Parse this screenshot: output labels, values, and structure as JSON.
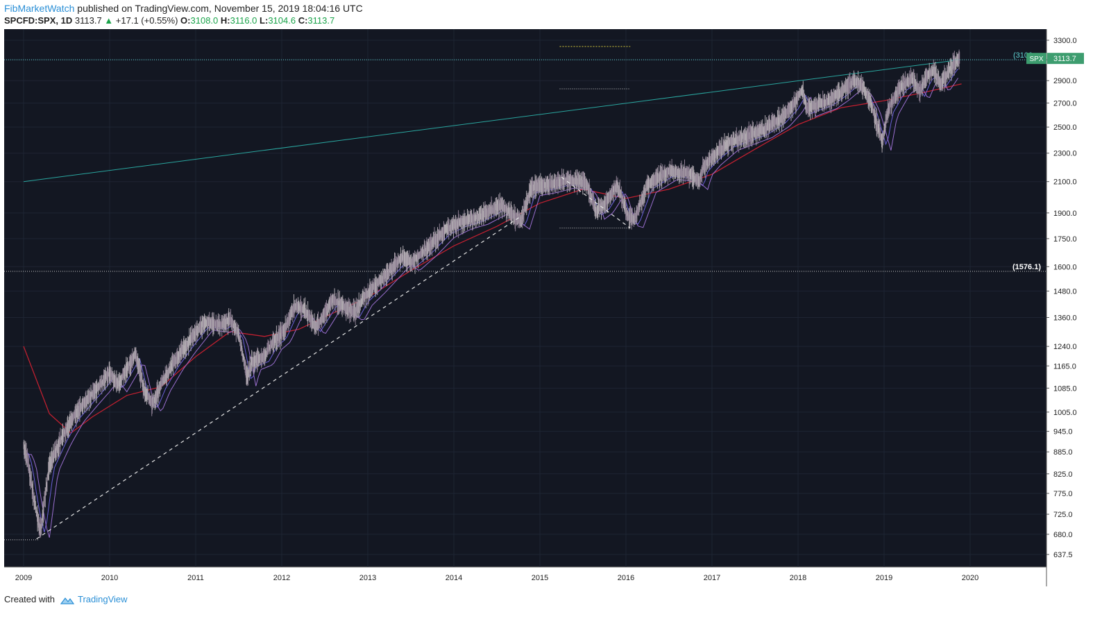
{
  "header": {
    "author": "FibMarketWatch",
    "published": "published on TradingView.com, November 15, 2019 18:04:16 UTC",
    "symbol": "SPCFD:SPX, 1D",
    "last": "3113.7",
    "change": "+17.1 (+0.55%)",
    "open_label": "O:",
    "open": "3108.0",
    "high_label": "H:",
    "high": "3116.0",
    "low_label": "L:",
    "low": "3104.6",
    "close_label": "C:",
    "close": "3113.7"
  },
  "footer": {
    "created_with": "Created with",
    "brand": "TradingView"
  },
  "colors": {
    "background": "#131722",
    "grid": "#1e2433",
    "candle": "#b0aab0",
    "ma_long": "#c02030",
    "ma_fast": "#6a5fd8",
    "ma_fast2": "#9a6fd0",
    "trendline": "#2aa7a0",
    "badge": "#3d9d6f",
    "dotted_white": "#cccccc",
    "dotted_yellow": "#d6c93a"
  },
  "chart_data": {
    "type": "line",
    "scale": "log",
    "y_ticks": [
      "3300.0",
      "3100.0",
      "2900.0",
      "2700.0",
      "2500.0",
      "2300.0",
      "2100.0",
      "1900.0",
      "1750.0",
      "1600.0",
      "1480.0",
      "1360.0",
      "1240.0",
      "1165.0",
      "1085.0",
      "1005.0",
      "945.0",
      "885.0",
      "825.0",
      "775.0",
      "725.0",
      "680.0",
      "637.5"
    ],
    "x_ticks": [
      "2009",
      "2010",
      "2011",
      "2012",
      "2013",
      "2014",
      "2015",
      "2016",
      "2017",
      "2018",
      "2019",
      "2020"
    ],
    "series": [
      {
        "role": "price",
        "x": [
          2009.0,
          2009.05,
          2009.12,
          2009.18,
          2009.2,
          2009.3,
          2009.45,
          2009.6,
          2009.75,
          2009.9,
          2010.0,
          2010.1,
          2010.3,
          2010.4,
          2010.5,
          2010.6,
          2010.75,
          2010.9,
          2011.1,
          2011.3,
          2011.4,
          2011.5,
          2011.6,
          2011.65,
          2011.8,
          2011.9,
          2012.0,
          2012.15,
          2012.25,
          2012.4,
          2012.6,
          2012.85,
          2012.95,
          2013.1,
          2013.4,
          2013.5,
          2013.7,
          2013.9,
          2014.1,
          2014.3,
          2014.55,
          2014.7,
          2014.78,
          2014.9,
          2015.1,
          2015.3,
          2015.45,
          2015.55,
          2015.65,
          2015.75,
          2015.9,
          2016.03,
          2016.1,
          2016.25,
          2016.5,
          2016.75,
          2016.85,
          2016.9,
          2017.0,
          2017.2,
          2017.4,
          2017.6,
          2017.8,
          2017.95,
          2018.05,
          2018.1,
          2018.2,
          2018.35,
          2018.5,
          2018.65,
          2018.75,
          2018.85,
          2018.95,
          2018.98,
          2019.05,
          2019.2,
          2019.33,
          2019.42,
          2019.5,
          2019.58,
          2019.65,
          2019.72,
          2019.8,
          2019.88
        ],
        "y": [
          900,
          860,
          760,
          700,
          690,
          850,
          930,
          1000,
          1050,
          1100,
          1140,
          1100,
          1210,
          1080,
          1030,
          1100,
          1180,
          1250,
          1340,
          1330,
          1350,
          1290,
          1120,
          1180,
          1200,
          1260,
          1290,
          1410,
          1400,
          1320,
          1440,
          1380,
          1450,
          1510,
          1650,
          1620,
          1700,
          1800,
          1850,
          1880,
          1950,
          1880,
          1850,
          2060,
          2080,
          2110,
          2100,
          2080,
          1910,
          1950,
          2080,
          1870,
          1860,
          2080,
          2170,
          2150,
          2100,
          2200,
          2270,
          2380,
          2430,
          2480,
          2570,
          2690,
          2820,
          2650,
          2680,
          2720,
          2800,
          2900,
          2850,
          2700,
          2450,
          2380,
          2650,
          2850,
          2920,
          2800,
          2950,
          3000,
          2870,
          2950,
          3050,
          3113.7
        ]
      },
      {
        "role": "ma_long",
        "x": [
          2009.0,
          2009.3,
          2009.55,
          2009.8,
          2010.2,
          2010.6,
          2011.0,
          2011.4,
          2011.8,
          2012.2,
          2012.6,
          2013.0,
          2013.5,
          2014.0,
          2014.5,
          2015.0,
          2015.5,
          2016.0,
          2016.5,
          2017.0,
          2017.5,
          2018.0,
          2018.5,
          2019.0,
          2019.5,
          2019.9
        ],
        "y": [
          1240,
          1000,
          940,
          990,
          1060,
          1090,
          1200,
          1300,
          1280,
          1310,
          1380,
          1450,
          1580,
          1710,
          1820,
          1960,
          2050,
          1990,
          2050,
          2150,
          2330,
          2520,
          2660,
          2720,
          2800,
          2870
        ]
      },
      {
        "role": "trendline",
        "x": [
          2009.0,
          2019.88
        ],
        "y": [
          2100,
          3100
        ]
      }
    ],
    "annotations": [
      {
        "label": "(1576.1)",
        "value": 1576.1
      },
      {
        "label": "(3100",
        "value": 3100
      },
      {
        "label": "SPX",
        "value": 3113.7
      },
      {
        "label": "3113.7",
        "value": 3113.7
      }
    ],
    "grid": true
  }
}
